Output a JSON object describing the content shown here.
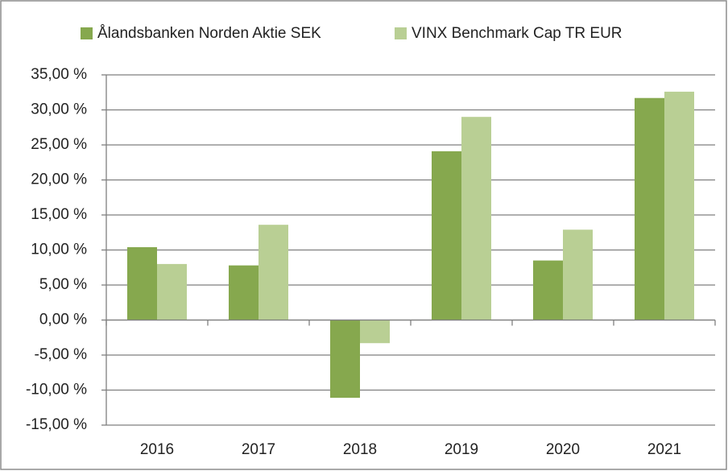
{
  "chart_data": {
    "type": "bar",
    "categories": [
      "2016",
      "2017",
      "2018",
      "2019",
      "2020",
      "2021"
    ],
    "series": [
      {
        "name": "Ålandsbanken Norden Aktie SEK",
        "color": "#86a84e",
        "values": [
          10.4,
          7.8,
          -11.1,
          24.1,
          8.5,
          31.7
        ]
      },
      {
        "name": "VINX Benchmark Cap TR EUR",
        "color": "#b9cf94",
        "values": [
          8.0,
          13.6,
          -3.3,
          29.0,
          12.9,
          32.6
        ]
      }
    ],
    "ylim": [
      -15,
      35
    ],
    "yticks": [
      {
        "value": -15,
        "label": "-15,00 %"
      },
      {
        "value": -10,
        "label": "-10,00 %"
      },
      {
        "value": -5,
        "label": "-5,00 %"
      },
      {
        "value": 0,
        "label": "0,00 %"
      },
      {
        "value": 5,
        "label": "5,00 %"
      },
      {
        "value": 10,
        "label": "10,00 %"
      },
      {
        "value": 15,
        "label": "15,00 %"
      },
      {
        "value": 20,
        "label": "20,00 %"
      },
      {
        "value": 25,
        "label": "25,00 %"
      },
      {
        "value": 30,
        "label": "30,00 %"
      },
      {
        "value": 35,
        "label": "35,00 %"
      }
    ],
    "grid": true
  }
}
